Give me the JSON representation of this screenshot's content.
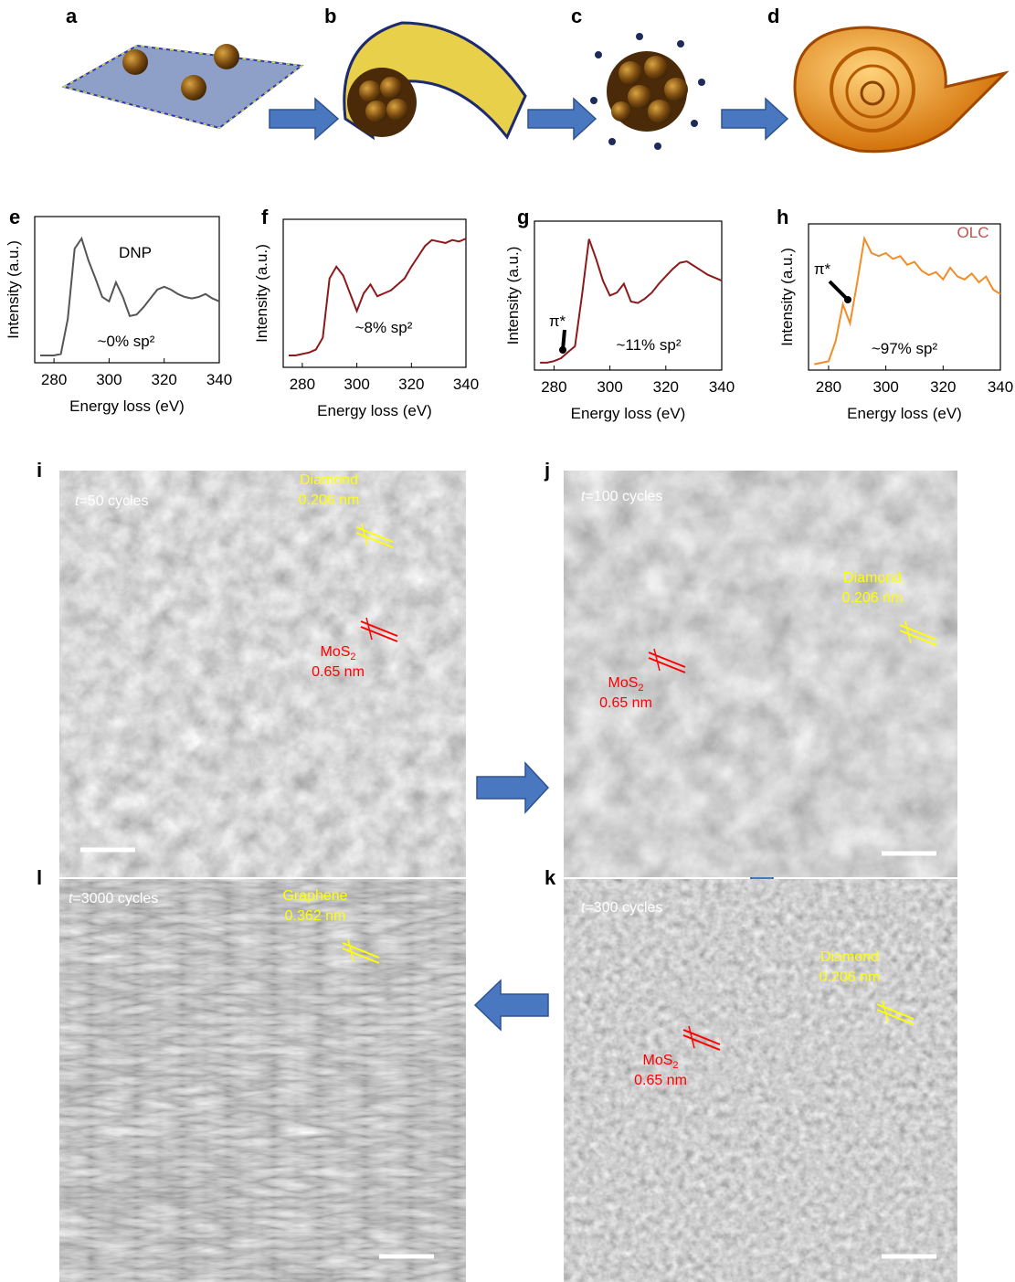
{
  "panel_labels": [
    "a",
    "b",
    "c",
    "d",
    "e",
    "f",
    "g",
    "h",
    "i",
    "j",
    "k",
    "l"
  ],
  "chart_data": [
    {
      "type": "line",
      "x_label": "Energy loss (eV)",
      "y_label": "Intensity (a.u.)",
      "color": "#555555",
      "xlim": [
        273,
        340
      ],
      "xticks": [
        280,
        300,
        320,
        340
      ],
      "ylim": [
        0,
        1
      ],
      "name_label": "DNP",
      "annotation": "~0% sp²",
      "x": [
        275,
        277.5,
        280,
        282.5,
        285,
        287.5,
        290,
        292.5,
        295,
        297.5,
        300,
        302.5,
        305,
        307.5,
        310,
        312.5,
        315,
        317.5,
        320,
        322.5,
        325,
        327.5,
        330,
        332.5,
        335,
        337.5,
        340
      ],
      "values": [
        0.05,
        0.05,
        0.05,
        0.06,
        0.3,
        0.78,
        0.85,
        0.7,
        0.58,
        0.45,
        0.42,
        0.55,
        0.45,
        0.32,
        0.33,
        0.38,
        0.44,
        0.5,
        0.52,
        0.5,
        0.47,
        0.45,
        0.44,
        0.45,
        0.47,
        0.44,
        0.42
      ]
    },
    {
      "type": "line",
      "x_label": "Energy loss (eV)",
      "y_label": "Intensity (a.u.)",
      "color": "#8b1a1a",
      "xlim": [
        273,
        340
      ],
      "xticks": [
        280,
        300,
        320,
        340
      ],
      "ylim": [
        0,
        1
      ],
      "annotation": "~8% sp²",
      "x": [
        275,
        277.5,
        280,
        282.5,
        285,
        287.5,
        290,
        292.5,
        295,
        297.5,
        300,
        302.5,
        305,
        307.5,
        310,
        312.5,
        315,
        317.5,
        320,
        322.5,
        325,
        327.5,
        330,
        332.5,
        335,
        337.5,
        340
      ],
      "values": [
        0.08,
        0.08,
        0.09,
        0.1,
        0.12,
        0.2,
        0.6,
        0.68,
        0.62,
        0.5,
        0.38,
        0.5,
        0.56,
        0.48,
        0.5,
        0.52,
        0.56,
        0.6,
        0.68,
        0.75,
        0.82,
        0.86,
        0.85,
        0.84,
        0.86,
        0.85,
        0.87
      ]
    },
    {
      "type": "line",
      "x_label": "Energy loss (eV)",
      "y_label": "Intensity (a.u.)",
      "color": "#8b1a1a",
      "xlim": [
        273,
        340
      ],
      "xticks": [
        280,
        300,
        320,
        340
      ],
      "ylim": [
        0,
        1
      ],
      "annotation": "~11% sp²",
      "pi_label": "π*",
      "x": [
        275,
        277.5,
        280,
        282.5,
        285,
        287.5,
        290,
        292.5,
        295,
        297.5,
        300,
        302.5,
        305,
        307.5,
        310,
        312.5,
        315,
        317.5,
        320,
        322.5,
        325,
        327.5,
        330,
        332.5,
        335,
        337.5,
        340
      ],
      "values": [
        0.05,
        0.05,
        0.06,
        0.08,
        0.12,
        0.16,
        0.5,
        0.88,
        0.75,
        0.6,
        0.5,
        0.52,
        0.58,
        0.46,
        0.45,
        0.48,
        0.52,
        0.58,
        0.63,
        0.68,
        0.72,
        0.73,
        0.7,
        0.67,
        0.64,
        0.62,
        0.6
      ]
    },
    {
      "type": "line",
      "x_label": "Energy loss (eV)",
      "y_label": "Intensity (a.u.)",
      "color": "#f28c28",
      "xlim": [
        273,
        340
      ],
      "xticks": [
        280,
        300,
        320,
        340
      ],
      "ylim": [
        0,
        1
      ],
      "name_label": "OLC",
      "annotation": "~97% sp²",
      "pi_label": "π*",
      "x": [
        275,
        277.5,
        280,
        282.5,
        285,
        287.5,
        290,
        292.5,
        295,
        297.5,
        300,
        302.5,
        305,
        307.5,
        310,
        312.5,
        315,
        317.5,
        320,
        322.5,
        325,
        327.5,
        330,
        332.5,
        335,
        337.5,
        340
      ],
      "values": [
        0.04,
        0.05,
        0.06,
        0.2,
        0.45,
        0.32,
        0.6,
        0.9,
        0.8,
        0.78,
        0.8,
        0.76,
        0.78,
        0.72,
        0.74,
        0.68,
        0.65,
        0.67,
        0.62,
        0.7,
        0.64,
        0.62,
        0.66,
        0.6,
        0.64,
        0.55,
        0.52
      ]
    }
  ],
  "micrographs": [
    {
      "time": {
        "var": "t",
        "rest": "=50 cycles"
      },
      "labels": [
        {
          "name": "Diamond",
          "spacing": "0.206 nm",
          "color": "#ffff00"
        },
        {
          "name": "MoS",
          "sub": "2",
          "spacing": "0.65 nm",
          "color": "#ff0000"
        }
      ]
    },
    {
      "time": {
        "var": "t",
        "rest": "=100 cycles"
      },
      "labels": [
        {
          "name": "Diamond",
          "spacing": "0.206 nm",
          "color": "#ffff00"
        },
        {
          "name": "MoS",
          "sub": "2",
          "spacing": "0.65 nm",
          "color": "#ff0000"
        }
      ]
    },
    {
      "time": {
        "var": "t",
        "rest": "=300 cycles"
      },
      "labels": [
        {
          "name": "Diamond",
          "spacing": "0.206 nm",
          "color": "#ffff00"
        },
        {
          "name": "MoS",
          "sub": "2",
          "spacing": "0.65 nm",
          "color": "#ff0000"
        }
      ]
    },
    {
      "time": {
        "var": "t",
        "rest": "=3000 cycles"
      },
      "labels": [
        {
          "name": "Graphene",
          "spacing": "0.362 nm",
          "color": "#ffff00"
        }
      ]
    }
  ]
}
